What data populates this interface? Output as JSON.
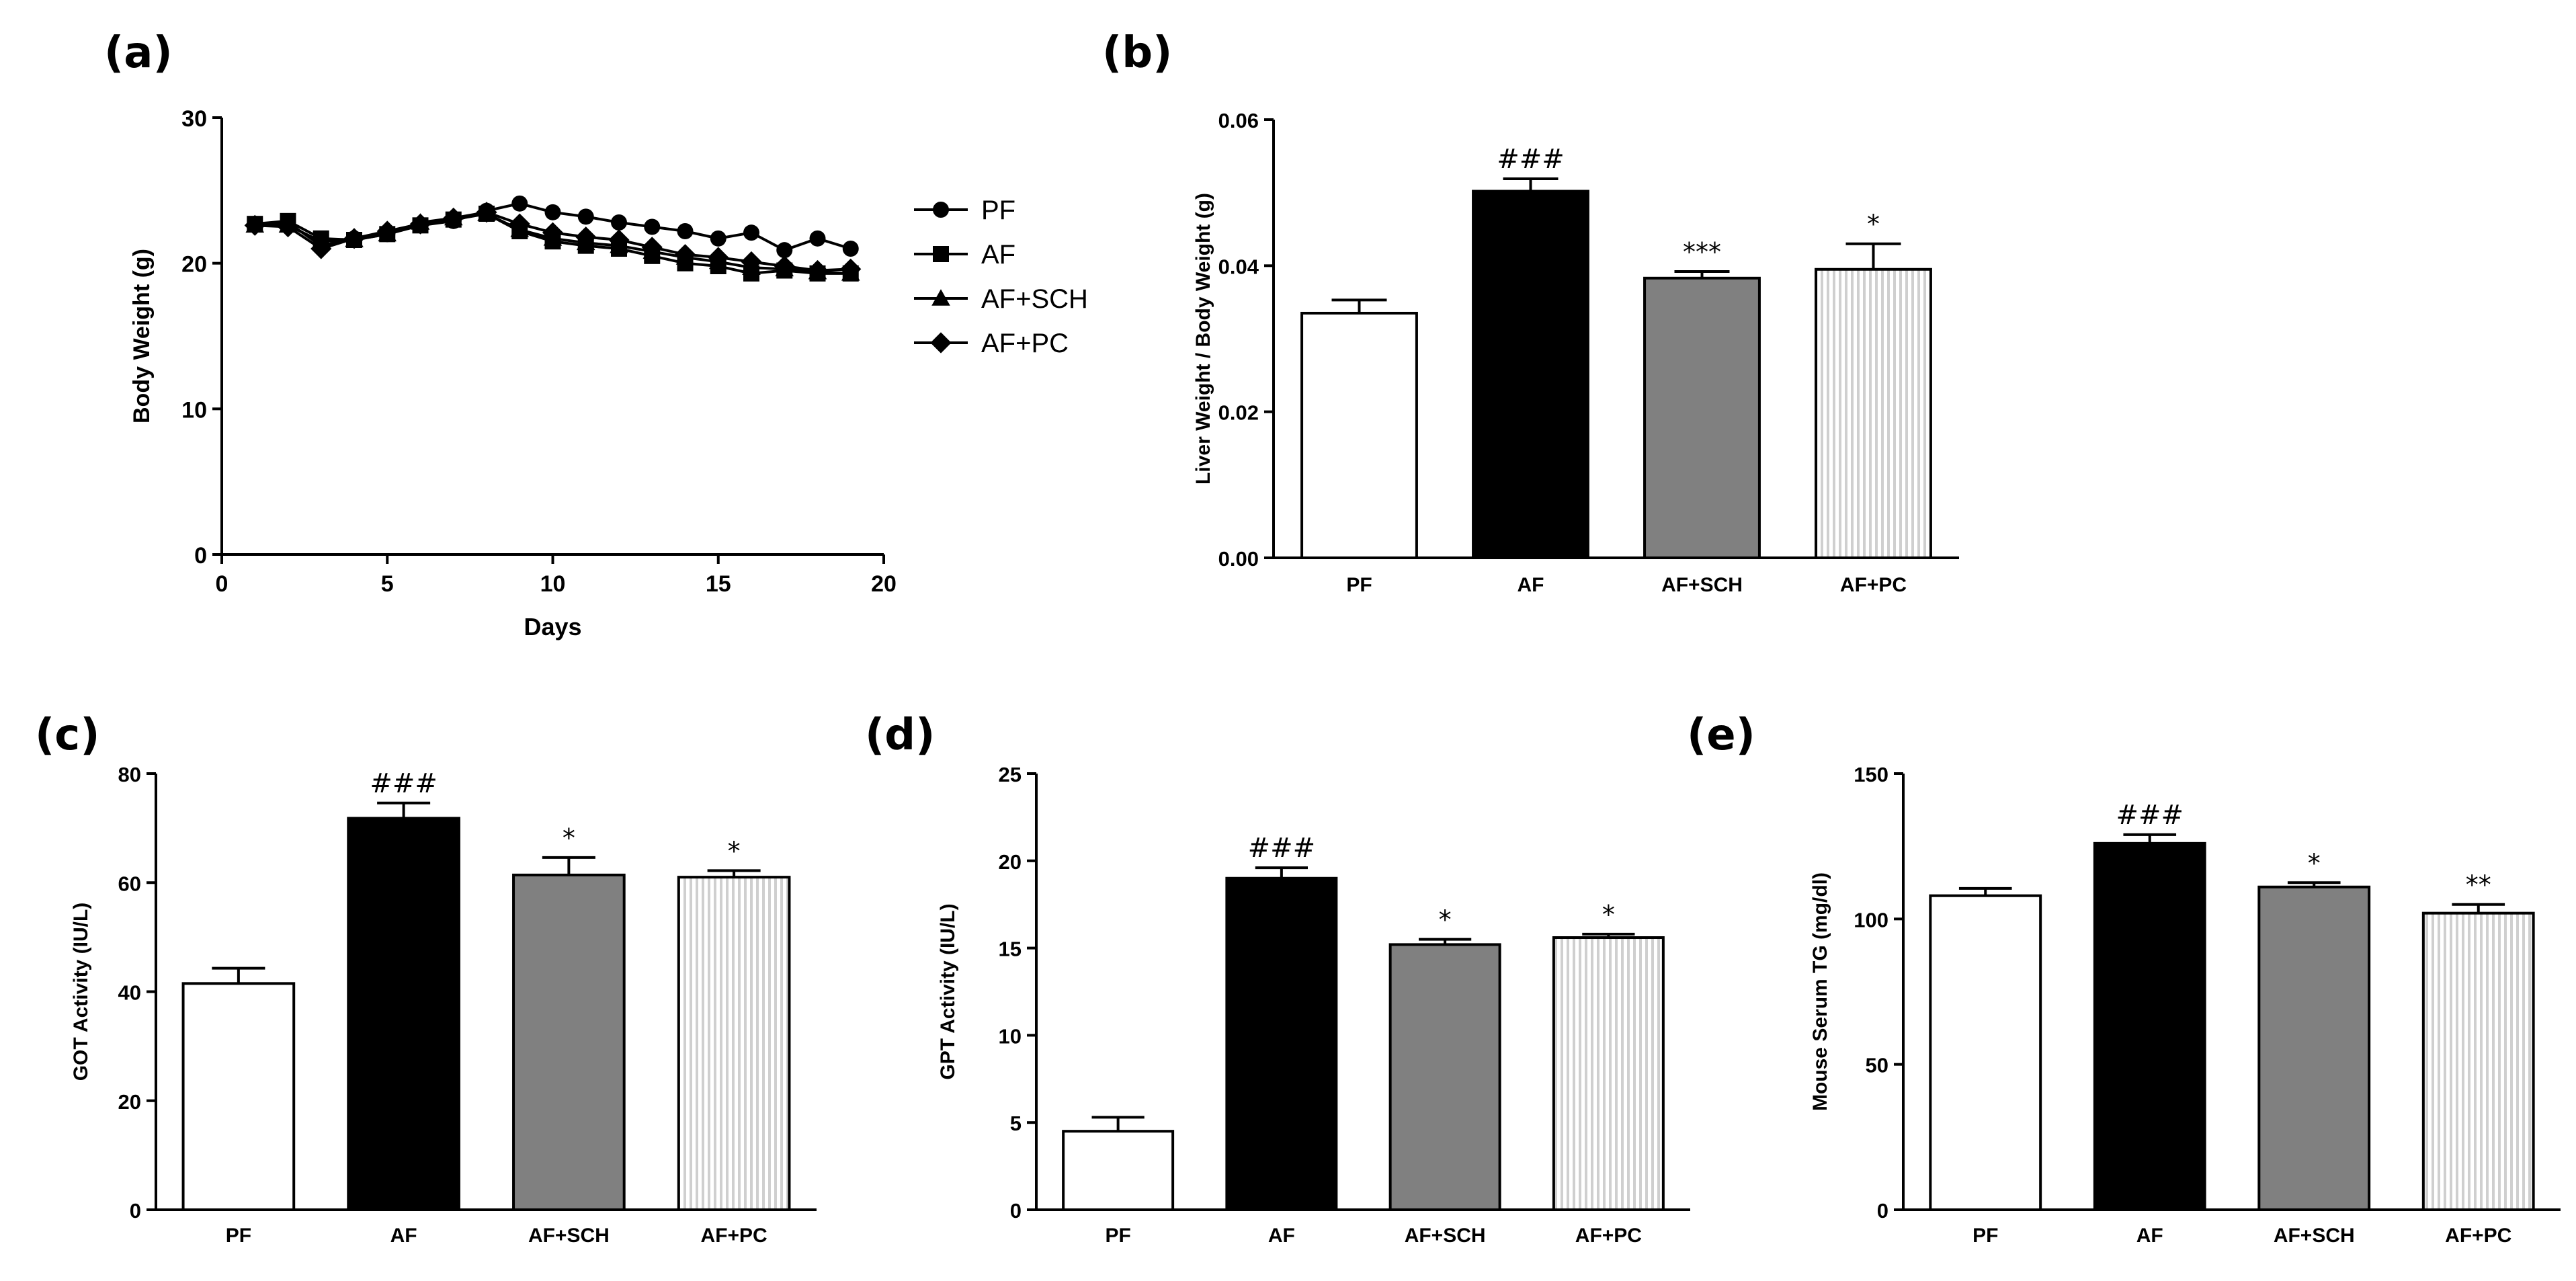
{
  "chart_data": [
    {
      "id": "a",
      "panel_label": "(a)",
      "type": "line",
      "xlabel": "Days",
      "ylabel": "Body Weight (g)",
      "xlim": [
        0,
        20
      ],
      "ylim": [
        0,
        30
      ],
      "xticks": [
        0,
        5,
        10,
        15,
        20
      ],
      "yticks": [
        0,
        10,
        20,
        30
      ],
      "grid": false,
      "legend_position": "right",
      "series": [
        {
          "name": "PF",
          "marker": "circle",
          "x": [
            1,
            2,
            3,
            4,
            5,
            6,
            7,
            8,
            9,
            10,
            11,
            12,
            13,
            14,
            15,
            16,
            17,
            18,
            19
          ],
          "y": [
            22.7,
            22.8,
            21.2,
            21.7,
            22.0,
            22.6,
            22.9,
            23.6,
            24.1,
            23.5,
            23.2,
            22.8,
            22.5,
            22.2,
            21.7,
            22.1,
            20.9,
            21.7,
            21.0
          ]
        },
        {
          "name": "AF",
          "marker": "square",
          "x": [
            1,
            2,
            3,
            4,
            5,
            6,
            7,
            8,
            9,
            10,
            11,
            12,
            13,
            14,
            15,
            16,
            17,
            18,
            19
          ],
          "y": [
            22.7,
            22.9,
            21.7,
            21.6,
            22.0,
            22.6,
            23.0,
            23.4,
            22.2,
            21.5,
            21.2,
            21.0,
            20.5,
            20.0,
            19.8,
            19.3,
            19.5,
            19.3,
            19.3
          ]
        },
        {
          "name": "AF+SCH",
          "marker": "triangle",
          "x": [
            1,
            2,
            3,
            4,
            5,
            6,
            7,
            8,
            9,
            10,
            11,
            12,
            13,
            14,
            15,
            16,
            17,
            18,
            19
          ],
          "y": [
            22.6,
            22.6,
            21.5,
            21.6,
            22.0,
            22.8,
            23.1,
            23.4,
            22.3,
            21.7,
            21.4,
            21.2,
            20.8,
            20.4,
            20.1,
            19.7,
            19.6,
            19.4,
            19.3
          ]
        },
        {
          "name": "AF+PC",
          "marker": "diamond",
          "x": [
            1,
            2,
            3,
            4,
            5,
            6,
            7,
            8,
            9,
            10,
            11,
            12,
            13,
            14,
            15,
            16,
            17,
            18,
            19
          ],
          "y": [
            22.6,
            22.5,
            21.0,
            21.7,
            22.2,
            22.7,
            23.1,
            23.5,
            22.7,
            22.1,
            21.8,
            21.6,
            21.1,
            20.6,
            20.4,
            20.1,
            19.8,
            19.5,
            19.6
          ]
        }
      ]
    },
    {
      "id": "b",
      "panel_label": "(b)",
      "type": "bar",
      "ylabel": "Liver Weight / Body Weight (g)",
      "ylim": [
        0,
        0.06
      ],
      "yticks": [
        "0.00",
        "0.02",
        "0.04",
        "0.06"
      ],
      "categories": [
        "PF",
        "AF",
        "AF+SCH",
        "AF+PC"
      ],
      "values": [
        0.0335,
        0.0502,
        0.0383,
        0.0395
      ],
      "errors": [
        0.0018,
        0.0017,
        0.0009,
        0.0035
      ],
      "annotations": [
        "",
        "###",
        "***",
        "*"
      ],
      "fills": [
        "white",
        "black",
        "gray",
        "stripes"
      ]
    },
    {
      "id": "c",
      "panel_label": "(c)",
      "type": "bar",
      "ylabel": "GOT Activity (IU/L)",
      "ylim": [
        0,
        80
      ],
      "yticks": [
        "0",
        "20",
        "40",
        "60",
        "80"
      ],
      "categories": [
        "PF",
        "AF",
        "AF+SCH",
        "AF+PC"
      ],
      "values": [
        41.5,
        71.8,
        61.4,
        61.0
      ],
      "errors": [
        2.8,
        2.8,
        3.2,
        1.2
      ],
      "annotations": [
        "",
        "###",
        "*",
        "*"
      ],
      "fills": [
        "white",
        "black",
        "gray",
        "stripes"
      ]
    },
    {
      "id": "d",
      "panel_label": "(d)",
      "type": "bar",
      "ylabel": "GPT Activity (IU/L)",
      "ylim": [
        0,
        25
      ],
      "yticks": [
        "0",
        "5",
        "10",
        "15",
        "20",
        "25"
      ],
      "categories": [
        "PF",
        "AF",
        "AF+SCH",
        "AF+PC"
      ],
      "values": [
        4.5,
        19.0,
        15.2,
        15.6
      ],
      "errors": [
        0.8,
        0.6,
        0.3,
        0.2
      ],
      "annotations": [
        "",
        "###",
        "*",
        "*"
      ],
      "fills": [
        "white",
        "black",
        "gray",
        "stripes"
      ]
    },
    {
      "id": "e",
      "panel_label": "(e)",
      "type": "bar",
      "ylabel": "Mouse Serum TG (mg/dl)",
      "ylim": [
        0,
        150
      ],
      "yticks": [
        "0",
        "50",
        "100",
        "150"
      ],
      "categories": [
        "PF",
        "AF",
        "AF+SCH",
        "AF+PC"
      ],
      "values": [
        108,
        126,
        111,
        102
      ],
      "errors": [
        2.5,
        3.0,
        1.5,
        3.0
      ],
      "annotations": [
        "",
        "###",
        "*",
        "**"
      ],
      "fills": [
        "white",
        "black",
        "gray",
        "stripes"
      ]
    }
  ],
  "colors": {
    "bar_black": "#000000",
    "bar_gray": "#808080",
    "bar_white": "#ffffff",
    "stripe_light": "#d8d8d8"
  }
}
